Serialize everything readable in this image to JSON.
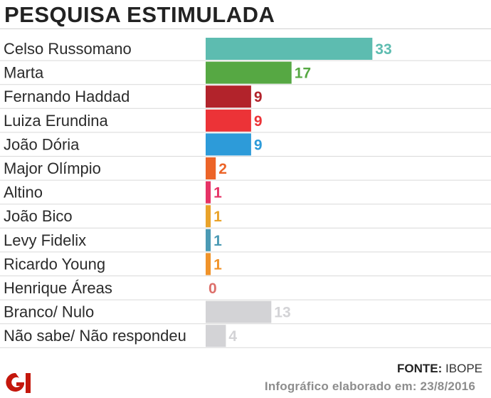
{
  "chart_data": {
    "type": "bar",
    "orientation": "horizontal",
    "title": "PESQUISA ESTIMULADA",
    "categories": [
      "Celso Russomano",
      "Marta",
      "Fernando Haddad",
      "Luiza Erundina",
      "João Dória",
      "Major Olímpio",
      "Altino",
      "João Bico",
      "Levy Fidelix",
      "Ricardo Young",
      "Henrique Áreas",
      "Branco/ Nulo",
      "Não sabe/ Não respondeu"
    ],
    "values": [
      33,
      17,
      9,
      9,
      9,
      2,
      1,
      1,
      1,
      1,
      0,
      13,
      4
    ],
    "colors": [
      "#5dbcb0",
      "#56a843",
      "#b2232b",
      "#ec3337",
      "#2d9bd9",
      "#ec6428",
      "#e63366",
      "#e9a32a",
      "#4b9ab4",
      "#f0932a",
      "#dd6f6a",
      "#d3d3d6",
      "#d3d3d6"
    ],
    "grid": false,
    "legend": "none"
  },
  "footer": {
    "source_label": "FONTE:",
    "source_name": "IBOPE",
    "credit": "Infográfico elaborado em: 23/8/2016",
    "logo_text": "G1"
  }
}
